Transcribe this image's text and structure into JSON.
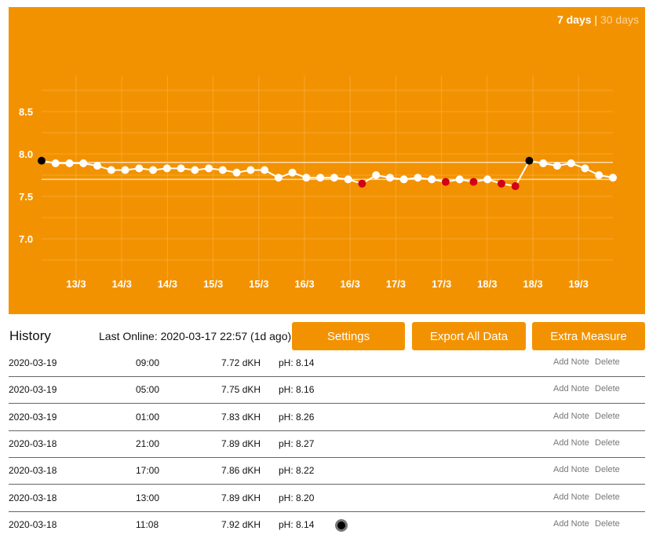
{
  "range_selector": {
    "active": "7 days",
    "separator": "|",
    "inactive": "30 days"
  },
  "colors": {
    "background": "#F39200",
    "normal_point": "#ffffff",
    "alert_point": "#d0021b",
    "marker_point": "#000000"
  },
  "chart_data": {
    "type": "line",
    "ylim": [
      6.625,
      8.8
    ],
    "y_ticks": [
      "7.0",
      "7.5",
      "8.0",
      "8.5"
    ],
    "y_tick_values": [
      7.0,
      7.5,
      8.0,
      8.5
    ],
    "x_tick_labels": [
      "13/3",
      "14/3",
      "14/3",
      "15/3",
      "15/3",
      "16/3",
      "16/3",
      "17/3",
      "17/3",
      "18/3",
      "18/3",
      "19/3"
    ],
    "reference_lines": [
      7.9,
      7.7
    ],
    "grid": true,
    "values": [
      7.92,
      7.89,
      7.89,
      7.89,
      7.86,
      7.81,
      7.81,
      7.83,
      7.81,
      7.83,
      7.83,
      7.81,
      7.83,
      7.81,
      7.78,
      7.81,
      7.81,
      7.72,
      7.78,
      7.72,
      7.72,
      7.72,
      7.7,
      7.65,
      7.75,
      7.72,
      7.7,
      7.72,
      7.7,
      7.67,
      7.7,
      7.67,
      7.7,
      7.65,
      7.62,
      7.92,
      7.89,
      7.86,
      7.89,
      7.83,
      7.75,
      7.72
    ],
    "point_types": [
      "marker",
      "n",
      "n",
      "n",
      "n",
      "n",
      "n",
      "n",
      "n",
      "n",
      "n",
      "n",
      "n",
      "n",
      "n",
      "n",
      "n",
      "n",
      "n",
      "n",
      "n",
      "n",
      "n",
      "alert",
      "n",
      "n",
      "n",
      "n",
      "n",
      "alert",
      "n",
      "alert",
      "n",
      "alert",
      "alert",
      "marker",
      "n",
      "n",
      "n",
      "n",
      "n",
      "n"
    ]
  },
  "history": {
    "title": "History",
    "last_online": "Last Online: 2020-03-17 22:57 (1d ago)",
    "buttons": {
      "settings": "Settings",
      "export": "Export All Data",
      "extra": "Extra Measure"
    },
    "row_actions": {
      "add_note": "Add Note",
      "delete": "Delete"
    },
    "rows": [
      {
        "date": "2020-03-19",
        "time": "09:00",
        "dkh": "7.72 dKH",
        "ph": "pH: 8.14",
        "marker": false
      },
      {
        "date": "2020-03-19",
        "time": "05:00",
        "dkh": "7.75 dKH",
        "ph": "pH: 8.16",
        "marker": false
      },
      {
        "date": "2020-03-19",
        "time": "01:00",
        "dkh": "7.83 dKH",
        "ph": "pH: 8.26",
        "marker": false
      },
      {
        "date": "2020-03-18",
        "time": "21:00",
        "dkh": "7.89 dKH",
        "ph": "pH: 8.27",
        "marker": false
      },
      {
        "date": "2020-03-18",
        "time": "17:00",
        "dkh": "7.86 dKH",
        "ph": "pH: 8.22",
        "marker": false
      },
      {
        "date": "2020-03-18",
        "time": "13:00",
        "dkh": "7.89 dKH",
        "ph": "pH: 8.20",
        "marker": false
      },
      {
        "date": "2020-03-18",
        "time": "11:08",
        "dkh": "7.92 dKH",
        "ph": "pH: 8.14",
        "marker": true
      }
    ]
  }
}
